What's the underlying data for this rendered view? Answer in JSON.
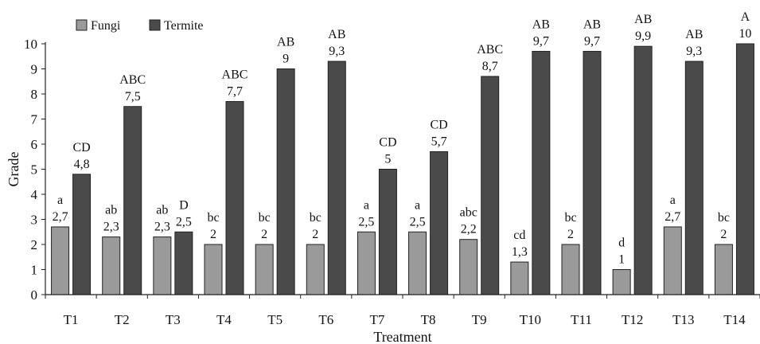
{
  "chart_data": {
    "type": "bar",
    "xlabel": "Treatment",
    "ylabel": "Grade",
    "ylim": [
      0,
      10
    ],
    "yticks": [
      "0",
      "1",
      "2",
      "3",
      "4",
      "5",
      "6",
      "7",
      "8",
      "9",
      "10"
    ],
    "categories": [
      "T1",
      "T2",
      "T3",
      "T4",
      "T5",
      "T6",
      "T7",
      "T8",
      "T9",
      "T10",
      "T11",
      "T12",
      "T13",
      "T14"
    ],
    "legend_position": "top-left",
    "grid": false,
    "series": [
      {
        "name": "Fungi",
        "color": "#9a9a9a",
        "values": [
          2.7,
          2.3,
          2.3,
          2,
          2,
          2,
          2.5,
          2.5,
          2.2,
          1.3,
          2,
          1,
          2.7,
          2
        ],
        "value_labels": [
          "2,7",
          "2,3",
          "2,3",
          "2",
          "2",
          "2",
          "2,5",
          "2,5",
          "2,2",
          "1,3",
          "2",
          "1",
          "2,7",
          "2"
        ],
        "letters": [
          "a",
          "ab",
          "ab",
          "bc",
          "bc",
          "bc",
          "a",
          "a",
          "abc",
          "cd",
          "bc",
          "d",
          "a",
          "bc"
        ]
      },
      {
        "name": "Termite",
        "color": "#4a4a4a",
        "values": [
          4.8,
          7.5,
          2.5,
          7.7,
          9,
          9.3,
          5,
          5.7,
          8.7,
          9.7,
          9.7,
          9.9,
          9.3,
          10
        ],
        "value_labels": [
          "4,8",
          "7,5",
          "2,5",
          "7,7",
          "9",
          "9,3",
          "5",
          "5,7",
          "8,7",
          "9,7",
          "9,7",
          "9,9",
          "9,3",
          "10"
        ],
        "letters": [
          "CD",
          "ABC",
          "D",
          "ABC",
          "AB",
          "AB",
          "CD",
          "CD",
          "ABC",
          "AB",
          "AB",
          "AB",
          "AB",
          "A"
        ]
      }
    ]
  }
}
